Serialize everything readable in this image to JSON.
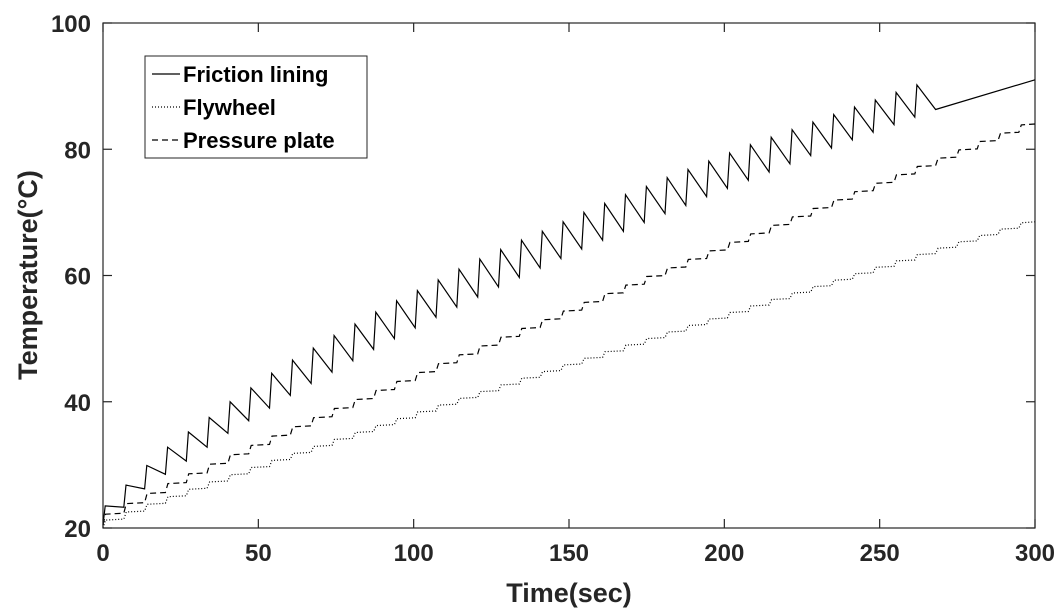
{
  "chart_data": {
    "type": "line",
    "title": "",
    "xlabel": "Time(sec)",
    "ylabel": "Temperature(°C)",
    "xlim": [
      0,
      300
    ],
    "ylim": [
      20,
      100
    ],
    "xticks": [
      0,
      50,
      100,
      150,
      200,
      250,
      300
    ],
    "yticks": [
      20,
      40,
      60,
      80,
      100
    ],
    "grid": false,
    "legend_position": "top-left",
    "cycle_period_sec": 6.7,
    "series": [
      {
        "name": "Friction lining",
        "style": "solid",
        "color": "#000000",
        "start_value": 20.5,
        "cycle_peaks": [
          23.5,
          26.8,
          29.9,
          32.8,
          35.2,
          37.5,
          40.0,
          42.2,
          44.5,
          46.6,
          48.5,
          50.5,
          52.3,
          54.2,
          56.0,
          57.6,
          59.3,
          61.0,
          62.6,
          64.1,
          65.6,
          67.0,
          68.5,
          70.0,
          71.4,
          72.8,
          74.1,
          75.5,
          76.8,
          78.1,
          79.4,
          80.7,
          81.9,
          83.1,
          84.3,
          85.5,
          86.7,
          87.8,
          89.0,
          90.2
        ],
        "cycle_troughs": [
          23.3,
          26.2,
          28.5,
          30.6,
          32.8,
          35.0,
          37.0,
          39.0,
          41.0,
          42.9,
          44.7,
          46.5,
          48.3,
          50.0,
          51.7,
          53.4,
          55.0,
          56.6,
          58.2,
          59.7,
          61.2,
          62.7,
          64.2,
          65.6,
          67.0,
          68.4,
          69.8,
          71.1,
          72.5,
          73.8,
          75.1,
          76.4,
          77.7,
          79.0,
          80.2,
          81.5,
          82.7,
          83.9,
          85.1,
          86.3
        ],
        "end_value": 91.0
      },
      {
        "name": "Flywheel",
        "style": "dotted",
        "color": "#000000",
        "start_value": 20.0,
        "end_value": 68.5,
        "step_per_cycle": 1.2
      },
      {
        "name": "Pressure plate",
        "style": "dashed",
        "color": "#000000",
        "start_value": 20.5,
        "end_value": 84.0,
        "step_per_cycle": 1.55
      }
    ]
  }
}
